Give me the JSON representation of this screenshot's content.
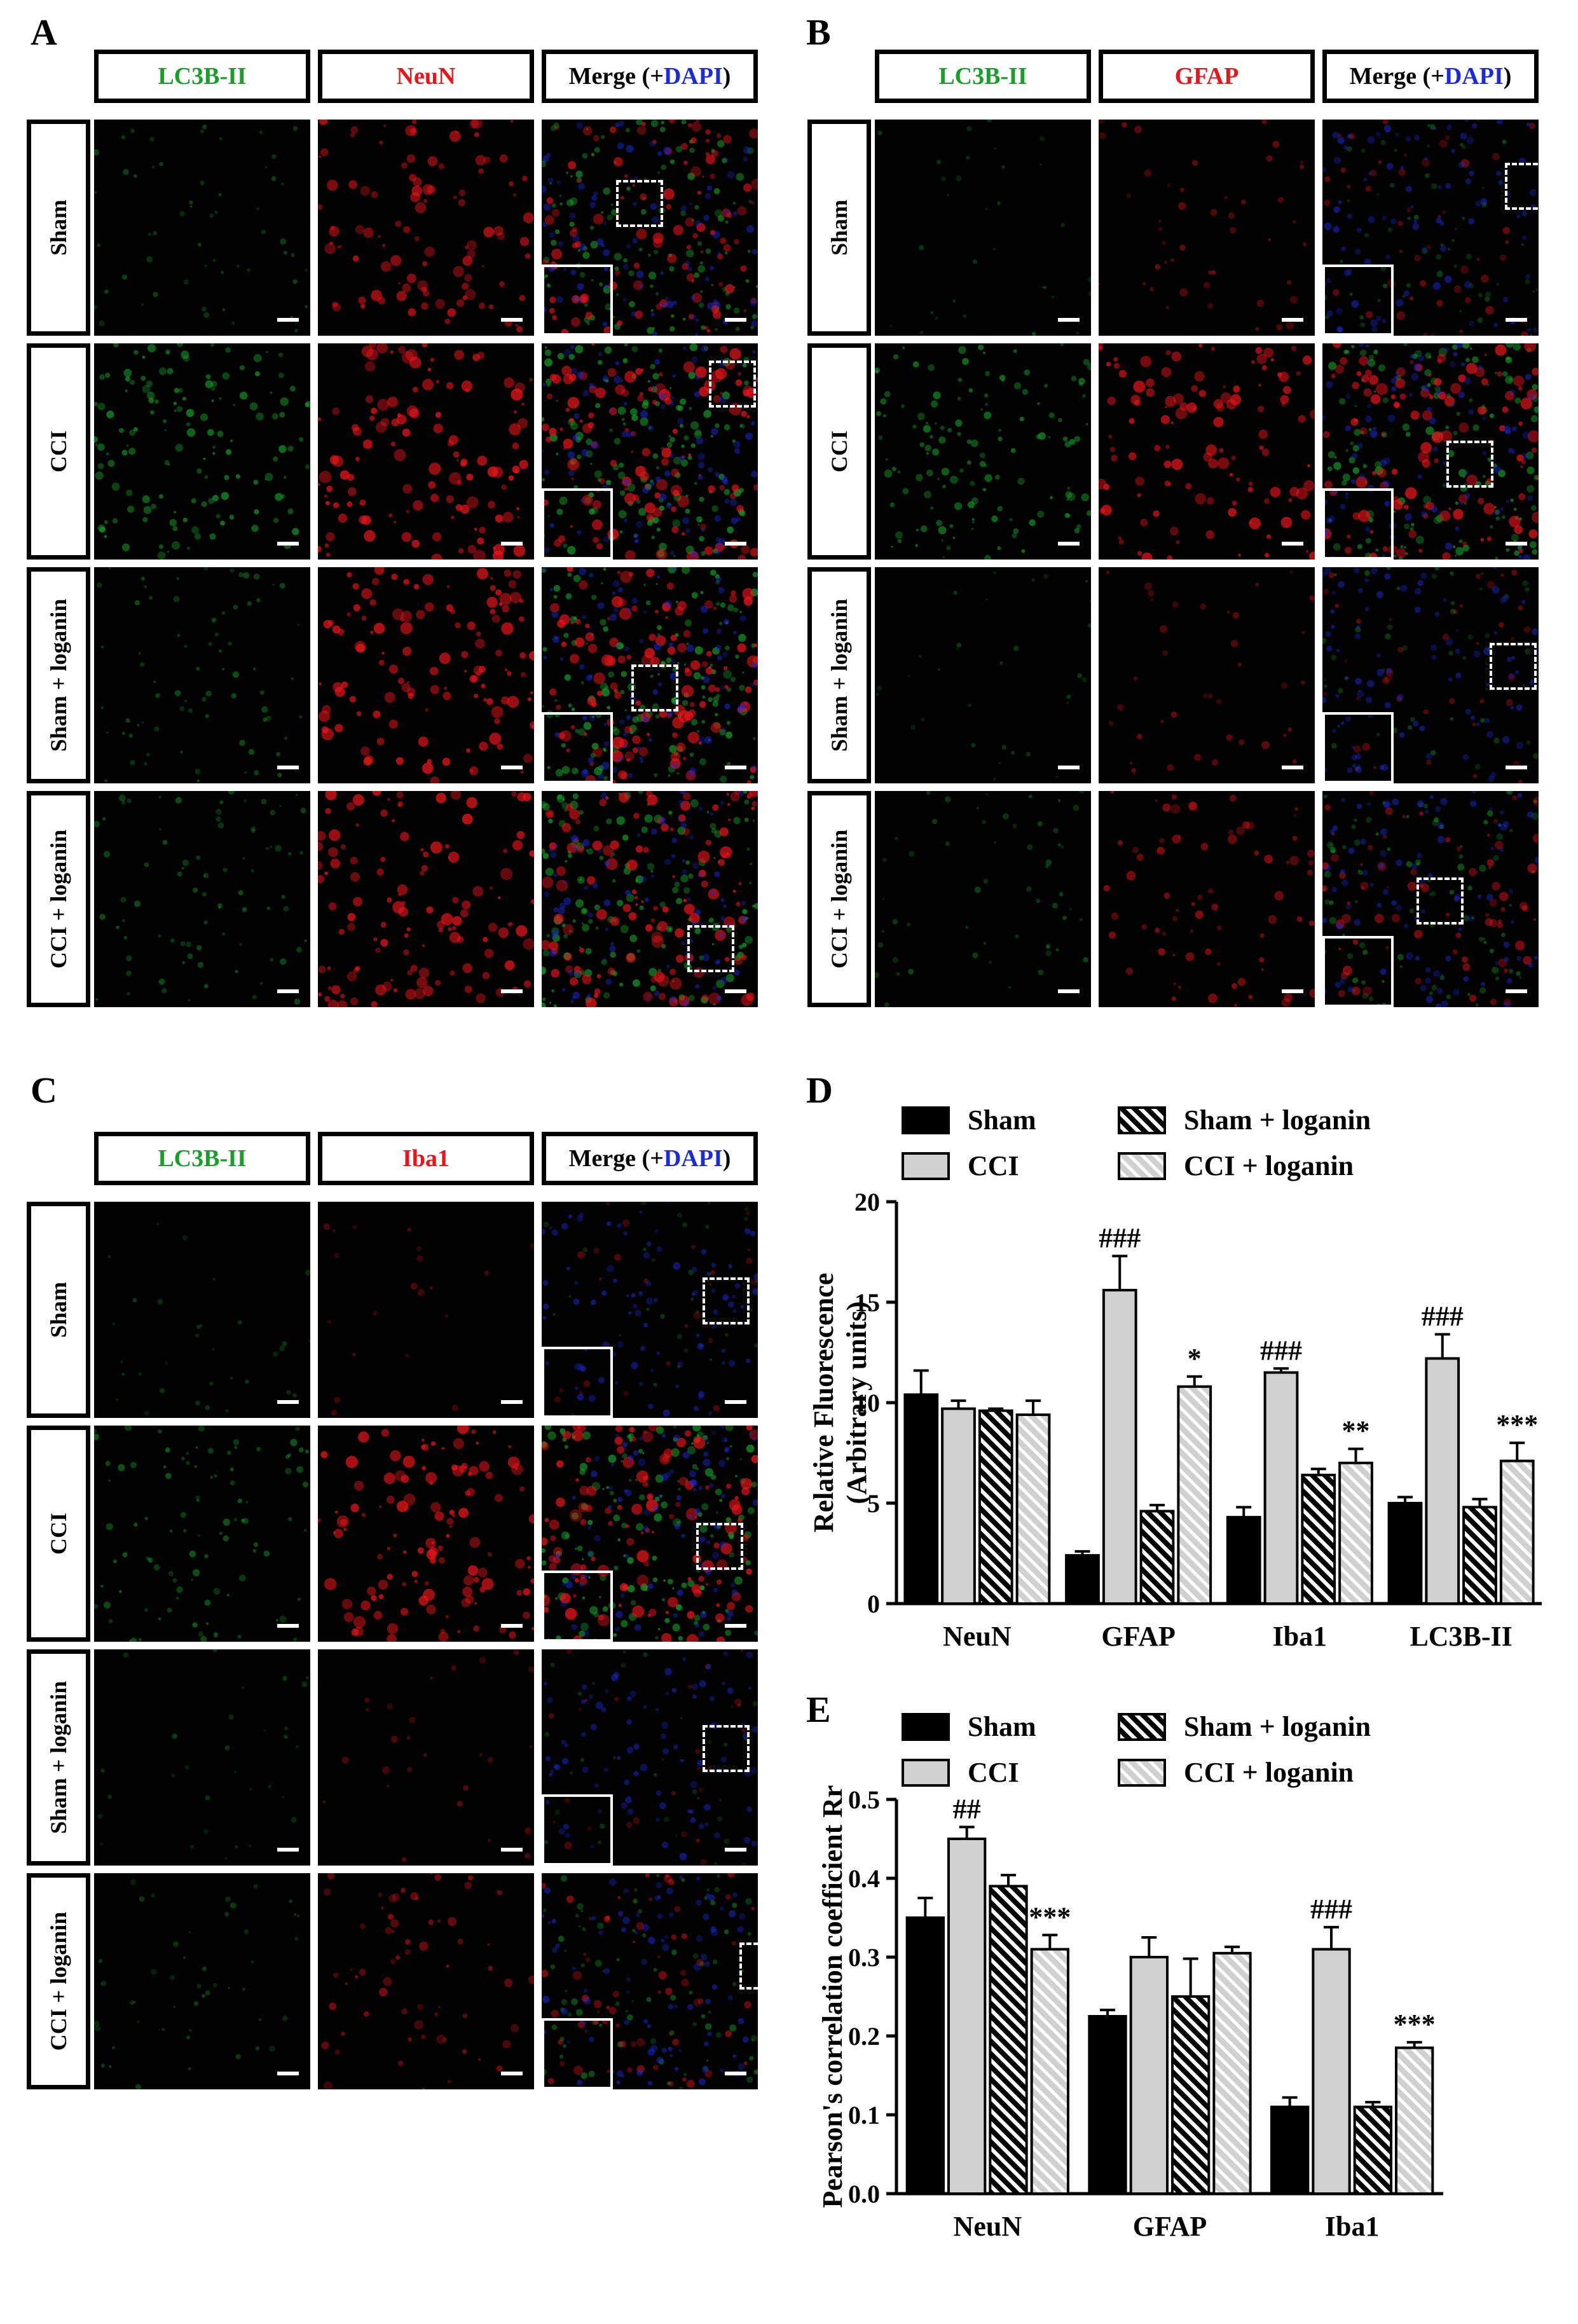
{
  "panels": {
    "A": {
      "letter": "A",
      "columns": [
        "LC3B-II",
        "NeuN",
        "Merge (+",
        "DAPI",
        ")"
      ],
      "rows": [
        "Sham",
        "CCI",
        "Sham + loganin",
        "CCI + loganin"
      ]
    },
    "B": {
      "letter": "B",
      "columns": [
        "LC3B-II",
        "GFAP",
        "Merge (+",
        "DAPI",
        ")"
      ],
      "rows": [
        "Sham",
        "CCI",
        "Sham + loganin",
        "CCI + loganin"
      ]
    },
    "C": {
      "letter": "C",
      "columns": [
        "LC3B-II",
        "Iba1",
        "Merge (+",
        "DAPI",
        ")"
      ],
      "rows": [
        "Sham",
        "CCI",
        "Sham + loganin",
        "CCI + loganin"
      ]
    },
    "D": {
      "letter": "D"
    },
    "E": {
      "letter": "E"
    }
  },
  "colors": {
    "green": "#1a9e2a",
    "red": "#e8161b",
    "blue": "#1c2bd9",
    "gray_bar": "#d0d0d0",
    "black_bar": "#000000"
  },
  "legend": [
    "Sham",
    "Sham + loganin",
    "CCI",
    "CCI + loganin"
  ],
  "chart_data": [
    {
      "type": "bar",
      "panel": "D",
      "categories": [
        "NeuN",
        "GFAP",
        "Iba1",
        "LC3B-II"
      ],
      "series": [
        {
          "name": "Sham",
          "values": [
            10.4,
            2.4,
            4.3,
            5.0
          ],
          "errors": [
            1.2,
            0.2,
            0.5,
            0.3
          ]
        },
        {
          "name": "CCI",
          "values": [
            9.7,
            15.6,
            11.5,
            12.2
          ],
          "errors": [
            0.4,
            1.7,
            0.2,
            1.2
          ]
        },
        {
          "name": "Sham + loganin",
          "values": [
            9.6,
            4.6,
            6.4,
            4.8
          ],
          "errors": [
            0.1,
            0.3,
            0.3,
            0.4
          ]
        },
        {
          "name": "CCI + loganin",
          "values": [
            9.4,
            10.8,
            7.0,
            7.1
          ],
          "errors": [
            0.7,
            0.5,
            0.7,
            0.9
          ]
        }
      ],
      "annotations": [
        {
          "category": "GFAP",
          "series": "CCI",
          "text": "###"
        },
        {
          "category": "GFAP",
          "series": "CCI + loganin",
          "text": "*"
        },
        {
          "category": "Iba1",
          "series": "CCI",
          "text": "###"
        },
        {
          "category": "Iba1",
          "series": "CCI + loganin",
          "text": "**"
        },
        {
          "category": "LC3B-II",
          "series": "CCI",
          "text": "###"
        },
        {
          "category": "LC3B-II",
          "series": "CCI + loganin",
          "text": "***"
        }
      ],
      "ylabel": "Relative Fluorescence",
      "ylabel2": "(Arbitrary units)",
      "ylim": [
        0,
        20
      ],
      "yticks": [
        "0",
        "5",
        "10",
        "15",
        "20"
      ]
    },
    {
      "type": "bar",
      "panel": "E",
      "categories": [
        "NeuN",
        "GFAP",
        "Iba1"
      ],
      "series": [
        {
          "name": "Sham",
          "values": [
            0.35,
            0.225,
            0.11
          ],
          "errors": [
            0.025,
            0.008,
            0.012
          ]
        },
        {
          "name": "CCI",
          "values": [
            0.45,
            0.3,
            0.31
          ],
          "errors": [
            0.015,
            0.025,
            0.028
          ]
        },
        {
          "name": "Sham + loganin",
          "values": [
            0.39,
            0.25,
            0.11
          ],
          "errors": [
            0.014,
            0.048,
            0.006
          ]
        },
        {
          "name": "CCI + loganin",
          "values": [
            0.31,
            0.305,
            0.185
          ],
          "errors": [
            0.018,
            0.008,
            0.007
          ]
        }
      ],
      "annotations": [
        {
          "category": "NeuN",
          "series": "CCI",
          "text": "##"
        },
        {
          "category": "NeuN",
          "series": "CCI + loganin",
          "text": "***"
        },
        {
          "category": "Iba1",
          "series": "CCI",
          "text": "###"
        },
        {
          "category": "Iba1",
          "series": "CCI + loganin",
          "text": "***"
        }
      ],
      "ylabel": "Pearson's correlation coefficient Rr",
      "ylim": [
        0,
        0.5
      ],
      "yticks": [
        "0.0",
        "0.1",
        "0.2",
        "0.3",
        "0.4",
        "0.5"
      ]
    }
  ]
}
